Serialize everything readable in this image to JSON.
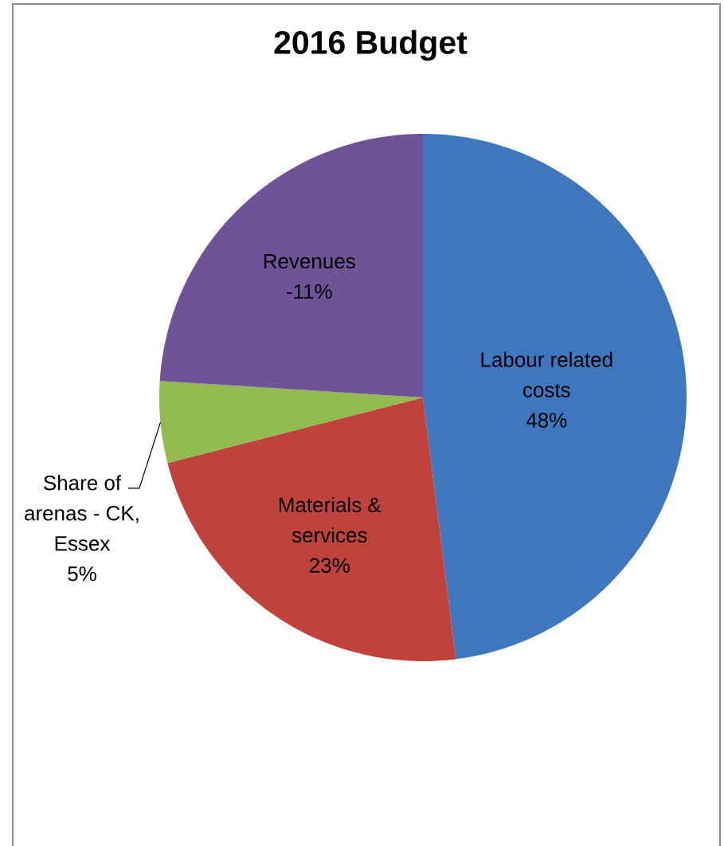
{
  "chart_data": {
    "type": "pie",
    "title": "2016 Budget",
    "categories": [
      "Labour related costs",
      "Materials & services",
      "Share of arenas - CK, Essex",
      "Revenues -11%"
    ],
    "values": [
      48,
      23,
      5,
      24
    ],
    "value_labels": [
      "48%",
      "23%",
      "5%",
      null
    ],
    "colors": [
      "#3f77bf",
      "#c0423c",
      "#93bc50",
      "#6f5399"
    ]
  }
}
